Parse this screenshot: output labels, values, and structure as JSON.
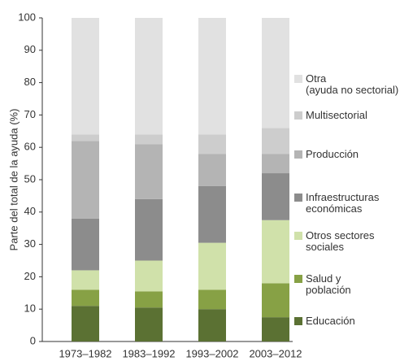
{
  "chart_data": {
    "type": "stacked_bar",
    "y_label": "Parte del total de la ayuda (%)",
    "categories": [
      "1973–1982",
      "1983–1992",
      "1993–2002",
      "2003–2012"
    ],
    "series": [
      {
        "name": "Educación",
        "color": "#5b7133",
        "values": [
          11,
          10.5,
          10,
          7.5
        ]
      },
      {
        "name": "Salud y\npoblación",
        "color": "#87a145",
        "values": [
          5,
          5,
          6,
          10.5
        ]
      },
      {
        "name": "Otros sectores\nsociales",
        "color": "#d0e1aa",
        "values": [
          6,
          9.5,
          14.5,
          19.5
        ]
      },
      {
        "name": "Infraestructuras\neconómicas",
        "color": "#8c8c8c",
        "values": [
          16,
          19,
          17.5,
          14.5
        ]
      },
      {
        "name": "Producción",
        "color": "#b4b4b4",
        "values": [
          24,
          17,
          10,
          6
        ]
      },
      {
        "name": "Multisectorial",
        "color": "#cdcdcd",
        "values": [
          2,
          3,
          6,
          8
        ]
      },
      {
        "name": "Otra\n(ayuda no sectorial)",
        "color": "#e1e1e1",
        "values": [
          36,
          36,
          36,
          34
        ]
      }
    ],
    "ylim": [
      0,
      100
    ],
    "yticks": [
      0,
      10,
      20,
      30,
      40,
      50,
      60,
      70,
      80,
      90,
      100
    ]
  }
}
